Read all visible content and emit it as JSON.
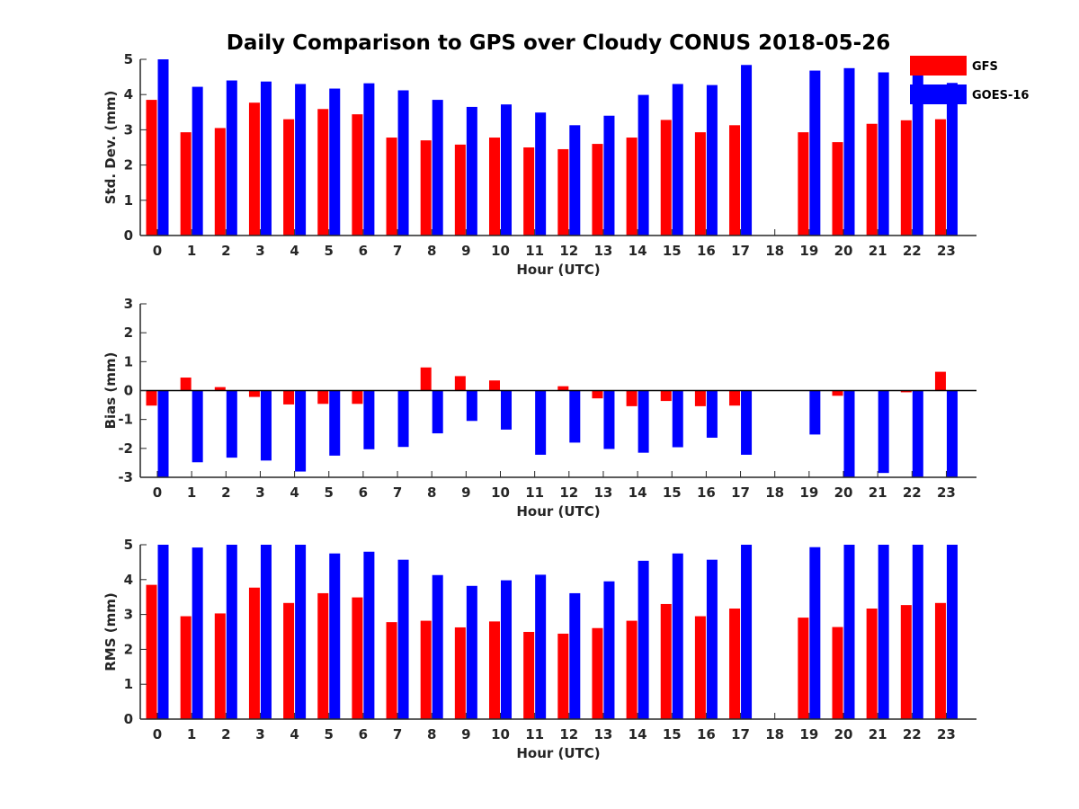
{
  "title": "Daily Comparison to GPS over Cloudy CONUS 2018-05-26",
  "colors": {
    "GFS": "#ff0000",
    "GOES-16": "#0000ff",
    "axis": "#262626"
  },
  "chart_data": [
    {
      "type": "bar",
      "ylabel": "Std. Dev. (mm)",
      "xlabel": "Hour (UTC)",
      "ylim": [
        0,
        5
      ],
      "yticks": [
        "0",
        "1",
        "2",
        "3",
        "4",
        "5"
      ],
      "categories": [
        "0",
        "1",
        "2",
        "3",
        "4",
        "5",
        "6",
        "7",
        "8",
        "9",
        "10",
        "11",
        "12",
        "13",
        "14",
        "15",
        "16",
        "17",
        "18",
        "19",
        "20",
        "21",
        "22",
        "23"
      ],
      "legend": {
        "position": "top-right",
        "entries": [
          "GFS",
          "GOES-16"
        ]
      },
      "series": [
        {
          "name": "GFS",
          "values": [
            3.85,
            2.93,
            3.05,
            3.77,
            3.3,
            3.59,
            3.44,
            2.78,
            2.7,
            2.58,
            2.78,
            2.5,
            2.45,
            2.6,
            2.78,
            3.28,
            2.93,
            3.13,
            null,
            2.93,
            2.65,
            3.17,
            3.27,
            3.3
          ]
        },
        {
          "name": "GOES-16",
          "values": [
            5.0,
            4.22,
            4.4,
            4.37,
            4.3,
            4.17,
            4.32,
            4.12,
            3.85,
            3.65,
            3.72,
            3.49,
            3.13,
            3.4,
            3.99,
            4.3,
            4.27,
            4.84,
            null,
            4.68,
            4.75,
            4.63,
            5.0,
            4.33
          ]
        }
      ]
    },
    {
      "type": "bar",
      "ylabel": "Bias (mm)",
      "xlabel": "Hour (UTC)",
      "ylim": [
        -3,
        3
      ],
      "yticks": [
        "-3",
        "-2",
        "-1",
        "0",
        "1",
        "2",
        "3"
      ],
      "categories": [
        "0",
        "1",
        "2",
        "3",
        "4",
        "5",
        "6",
        "7",
        "8",
        "9",
        "10",
        "11",
        "12",
        "13",
        "14",
        "15",
        "16",
        "17",
        "18",
        "19",
        "20",
        "21",
        "22",
        "23"
      ],
      "series": [
        {
          "name": "GFS",
          "values": [
            -0.52,
            0.45,
            0.12,
            -0.22,
            -0.48,
            -0.46,
            -0.46,
            0.0,
            0.8,
            0.5,
            0.35,
            0.0,
            0.15,
            -0.27,
            -0.54,
            -0.36,
            -0.54,
            -0.52,
            null,
            0.0,
            -0.18,
            0.0,
            -0.06,
            0.65
          ]
        },
        {
          "name": "GOES-16",
          "values": [
            -3.0,
            -2.48,
            -2.32,
            -2.42,
            -2.8,
            -2.25,
            -2.03,
            -1.95,
            -1.48,
            -1.05,
            -1.35,
            -2.22,
            -1.8,
            -2.02,
            -2.15,
            -1.96,
            -1.63,
            -2.22,
            null,
            -1.52,
            -3.0,
            -2.85,
            -3.0,
            -3.0
          ]
        }
      ]
    },
    {
      "type": "bar",
      "ylabel": "RMS (mm)",
      "xlabel": "Hour (UTC)",
      "ylim": [
        0,
        5
      ],
      "yticks": [
        "0",
        "1",
        "2",
        "3",
        "4",
        "5"
      ],
      "categories": [
        "0",
        "1",
        "2",
        "3",
        "4",
        "5",
        "6",
        "7",
        "8",
        "9",
        "10",
        "11",
        "12",
        "13",
        "14",
        "15",
        "16",
        "17",
        "18",
        "19",
        "20",
        "21",
        "22",
        "23"
      ],
      "series": [
        {
          "name": "GFS",
          "values": [
            3.85,
            2.95,
            3.03,
            3.77,
            3.33,
            3.61,
            3.49,
            2.78,
            2.82,
            2.63,
            2.8,
            2.5,
            2.45,
            2.61,
            2.82,
            3.3,
            2.95,
            3.17,
            null,
            2.91,
            2.64,
            3.17,
            3.27,
            3.33
          ]
        },
        {
          "name": "GOES-16",
          "values": [
            5.0,
            4.92,
            5.0,
            5.0,
            5.0,
            4.75,
            4.8,
            4.57,
            4.13,
            3.82,
            3.98,
            4.14,
            3.61,
            3.95,
            4.54,
            4.75,
            4.57,
            5.0,
            null,
            4.93,
            5.0,
            5.0,
            5.0,
            5.0
          ]
        }
      ]
    }
  ]
}
